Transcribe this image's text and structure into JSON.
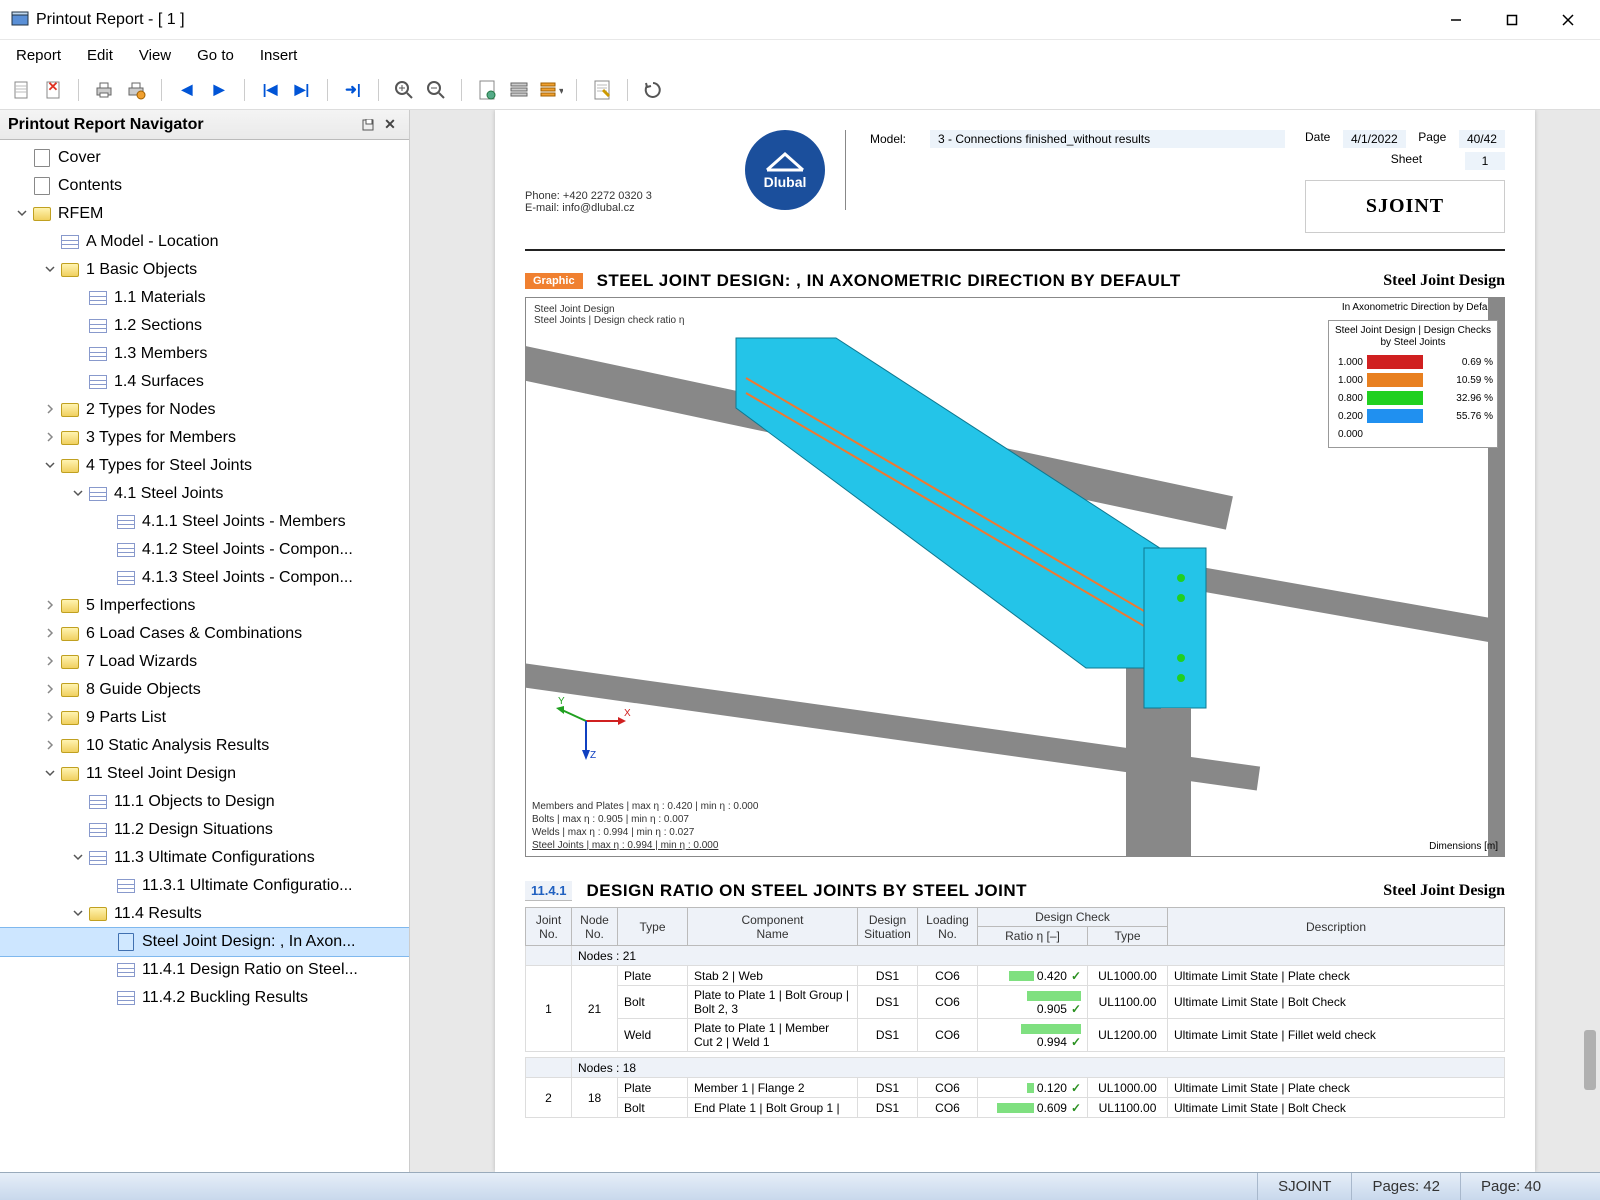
{
  "window": {
    "title": "Printout Report - [ 1 ]"
  },
  "menu": [
    "Report",
    "Edit",
    "View",
    "Go to",
    "Insert"
  ],
  "navigator": {
    "title": "Printout Report Navigator",
    "items": [
      {
        "depth": 0,
        "tw": "",
        "icon": "page",
        "label": "Cover"
      },
      {
        "depth": 0,
        "tw": "",
        "icon": "page",
        "label": "Contents"
      },
      {
        "depth": 0,
        "tw": "˅",
        "icon": "folder-app",
        "label": "RFEM"
      },
      {
        "depth": 1,
        "tw": "",
        "icon": "table",
        "label": "A Model - Location"
      },
      {
        "depth": 1,
        "tw": "˅",
        "icon": "folder",
        "label": "1 Basic Objects"
      },
      {
        "depth": 2,
        "tw": "",
        "icon": "table",
        "label": "1.1 Materials"
      },
      {
        "depth": 2,
        "tw": "",
        "icon": "table",
        "label": "1.2 Sections"
      },
      {
        "depth": 2,
        "tw": "",
        "icon": "table",
        "label": "1.3 Members"
      },
      {
        "depth": 2,
        "tw": "",
        "icon": "table",
        "label": "1.4 Surfaces"
      },
      {
        "depth": 1,
        "tw": "›",
        "icon": "folder",
        "label": "2 Types for Nodes"
      },
      {
        "depth": 1,
        "tw": "›",
        "icon": "folder",
        "label": "3 Types for Members"
      },
      {
        "depth": 1,
        "tw": "˅",
        "icon": "folder",
        "label": "4 Types for Steel Joints"
      },
      {
        "depth": 2,
        "tw": "˅",
        "icon": "table",
        "label": "4.1 Steel Joints"
      },
      {
        "depth": 3,
        "tw": "",
        "icon": "table",
        "label": "4.1.1 Steel Joints - Members"
      },
      {
        "depth": 3,
        "tw": "",
        "icon": "table",
        "label": "4.1.2 Steel Joints - Compon..."
      },
      {
        "depth": 3,
        "tw": "",
        "icon": "table",
        "label": "4.1.3 Steel Joints - Compon..."
      },
      {
        "depth": 1,
        "tw": "›",
        "icon": "folder",
        "label": "5 Imperfections"
      },
      {
        "depth": 1,
        "tw": "›",
        "icon": "folder",
        "label": "6 Load Cases & Combinations"
      },
      {
        "depth": 1,
        "tw": "›",
        "icon": "folder",
        "label": "7 Load Wizards"
      },
      {
        "depth": 1,
        "tw": "›",
        "icon": "folder",
        "label": "8 Guide Objects"
      },
      {
        "depth": 1,
        "tw": "›",
        "icon": "folder",
        "label": "9 Parts List"
      },
      {
        "depth": 1,
        "tw": "›",
        "icon": "folder",
        "label": "10 Static Analysis Results"
      },
      {
        "depth": 1,
        "tw": "˅",
        "icon": "folder",
        "label": "11 Steel Joint Design"
      },
      {
        "depth": 2,
        "tw": "",
        "icon": "table",
        "label": "11.1 Objects to Design"
      },
      {
        "depth": 2,
        "tw": "",
        "icon": "table",
        "label": "11.2 Design Situations"
      },
      {
        "depth": 2,
        "tw": "˅",
        "icon": "table",
        "label": "11.3 Ultimate Configurations"
      },
      {
        "depth": 3,
        "tw": "",
        "icon": "table",
        "label": "11.3.1 Ultimate Configuratio..."
      },
      {
        "depth": 2,
        "tw": "˅",
        "icon": "folder",
        "label": "11.4 Results"
      },
      {
        "depth": 3,
        "tw": "",
        "icon": "img",
        "label": "Steel Joint Design: , In Axon...",
        "selected": true
      },
      {
        "depth": 3,
        "tw": "",
        "icon": "table",
        "label": "11.4.1 Design Ratio on Steel..."
      },
      {
        "depth": 3,
        "tw": "",
        "icon": "table",
        "label": "11.4.2 Buckling Results"
      }
    ]
  },
  "page_header": {
    "phone": "Phone: +420 2272 0320 3",
    "email": "E-mail: info@dlubal.cz",
    "logo_text": "Dlubal",
    "model_label": "Model:",
    "model_value": "3 - Connections finished_without results",
    "date_label": "Date",
    "date_value": "4/1/2022",
    "page_label": "Page",
    "page_value": "40/42",
    "sheet_label": "Sheet",
    "sheet_value": "1",
    "sjoint": "SJOINT"
  },
  "graphic_section": {
    "badge": "Graphic",
    "title": "STEEL JOINT DESIGN: , IN AXONOMETRIC DIRECTION BY DEFAULT",
    "rt": "Steel Joint Design",
    "tl1": "Steel Joint Design",
    "tl2": "Steel Joints | Design check ratio η",
    "tr": "In Axonometric Direction by Default",
    "legend_title": "Steel Joint Design | Design Checks by Steel Joints",
    "legend_rows": [
      {
        "y": "1.000",
        "color": "#d02020",
        "pct": "0.69 %"
      },
      {
        "y": "1.000",
        "color": "#e88020",
        "pct": "10.59 %"
      },
      {
        "y": "0.800",
        "color": "#20d020",
        "pct": "32.96 %"
      },
      {
        "y": "0.200",
        "color": "#2090f0",
        "pct": "55.76 %"
      },
      {
        "y": "0.000",
        "color": "",
        "pct": ""
      }
    ],
    "bottom": [
      "Members and Plates | max η : 0.420 | min η : 0.000",
      "Bolts | max η : 0.905 | min η : 0.007",
      "Welds | max η : 0.994 | min η : 0.027",
      "Steel Joints | max η : 0.994 | min η : 0.000"
    ],
    "dim": "Dimensions [m]"
  },
  "table_section": {
    "badge": "11.4.1",
    "title": "DESIGN RATIO ON STEEL JOINTS BY STEEL JOINT",
    "rt": "Steel Joint Design",
    "head": {
      "joint": "Joint\nNo.",
      "node": "Node\nNo.",
      "type": "Type",
      "comp": "Component\nName",
      "ds": "Design\nSituation",
      "load": "Loading\nNo.",
      "dc": "Design Check",
      "ratio": "Ratio η [–]",
      "dct": "Type",
      "desc": "Description"
    },
    "groups": [
      {
        "label": "Nodes : 21",
        "joint": "1",
        "node": "21",
        "rows": [
          {
            "type": "Plate",
            "comp": "Stab 2 | Web",
            "ds": "DS1",
            "load": "CO6",
            "ratio": 0.42,
            "dct": "UL1000.00",
            "desc": "Ultimate Limit State | Plate check"
          },
          {
            "type": "Bolt",
            "comp": "Plate to Plate 1 | Bolt Group | Bolt 2, 3",
            "ds": "DS1",
            "load": "CO6",
            "ratio": 0.905,
            "dct": "UL1100.00",
            "desc": "Ultimate Limit State | Bolt Check"
          },
          {
            "type": "Weld",
            "comp": "Plate to Plate 1 | Member Cut 2 | Weld 1",
            "ds": "DS1",
            "load": "CO6",
            "ratio": 0.994,
            "dct": "UL1200.00",
            "desc": "Ultimate Limit State | Fillet weld check"
          }
        ]
      },
      {
        "label": "Nodes : 18",
        "joint": "2",
        "node": "18",
        "rows": [
          {
            "type": "Plate",
            "comp": "Member 1 | Flange 2",
            "ds": "DS1",
            "load": "CO6",
            "ratio": 0.12,
            "dct": "UL1000.00",
            "desc": "Ultimate Limit State | Plate check"
          },
          {
            "type": "Bolt",
            "comp": "End Plate 1 | Bolt Group 1 |",
            "ds": "DS1",
            "load": "CO6",
            "ratio": 0.609,
            "dct": "UL1100.00",
            "desc": "Ultimate Limit State | Bolt Check"
          }
        ]
      }
    ]
  },
  "statusbar": {
    "sjoint": "SJOINT",
    "pages": "Pages: 42",
    "page": "Page: 40"
  }
}
